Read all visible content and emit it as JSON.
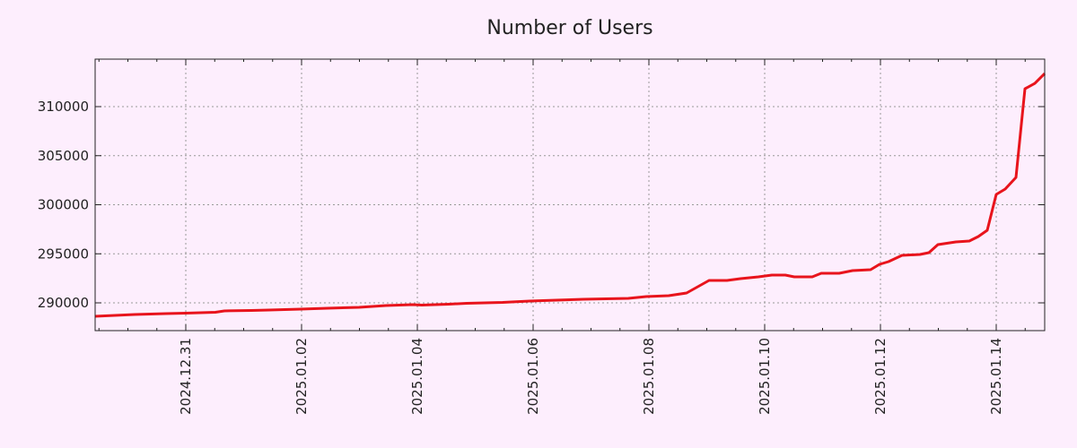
{
  "chart_data": {
    "type": "line",
    "title": "Number of Users",
    "xlabel": "",
    "ylabel": "",
    "x_origin": "2024.12.31",
    "x_unit": "days",
    "xlim": [
      -1.566,
      14.837
    ],
    "ylim": [
      287170,
      314840
    ],
    "grid": true,
    "x_ticks": [
      0,
      2,
      4,
      6,
      8,
      10,
      12,
      14
    ],
    "x_tick_labels": [
      "2024.12.31",
      "2025.01.02",
      "2025.01.04",
      "2025.01.06",
      "2025.01.08",
      "2025.01.10",
      "2025.01.12",
      "2025.01.14"
    ],
    "y_ticks": [
      290000,
      295000,
      300000,
      305000,
      310000
    ],
    "y_tick_labels": [
      "290000",
      "295000",
      "300000",
      "305000",
      "310000"
    ],
    "line_color": "#e8141c",
    "series": [
      {
        "name": "Number of Users",
        "x": [
          -1.566,
          -1.225,
          -0.884,
          -0.341,
          0,
          0.512,
          0.667,
          1.132,
          1.442,
          1.984,
          2.45,
          2.992,
          3.457,
          3.922,
          4.078,
          4.543,
          4.853,
          5.473,
          5.938,
          6.403,
          6.868,
          7.643,
          7.953,
          8.341,
          8.651,
          9.039,
          9.349,
          9.581,
          9.891,
          10.124,
          10.357,
          10.512,
          10.822,
          10.977,
          11.287,
          11.519,
          11.829,
          11.984,
          12.14,
          12.372,
          12.682,
          12.837,
          12.992,
          13.302,
          13.535,
          13.69,
          13.845,
          14.0,
          14.155,
          14.341,
          14.496,
          14.667,
          14.837
        ],
        "y": [
          288630,
          288722,
          288813,
          288904,
          288950,
          289041,
          289178,
          289224,
          289270,
          289361,
          289452,
          289543,
          289726,
          289817,
          289772,
          289863,
          289954,
          290046,
          290183,
          290274,
          290365,
          290456,
          290639,
          290730,
          291004,
          292282,
          292282,
          292465,
          292647,
          292830,
          292830,
          292647,
          292647,
          293013,
          293013,
          293286,
          293378,
          293926,
          294200,
          294839,
          294930,
          295113,
          295935,
          296208,
          296300,
          296756,
          297396,
          301048,
          301595,
          302782,
          311821,
          312369,
          313373
        ]
      }
    ]
  }
}
